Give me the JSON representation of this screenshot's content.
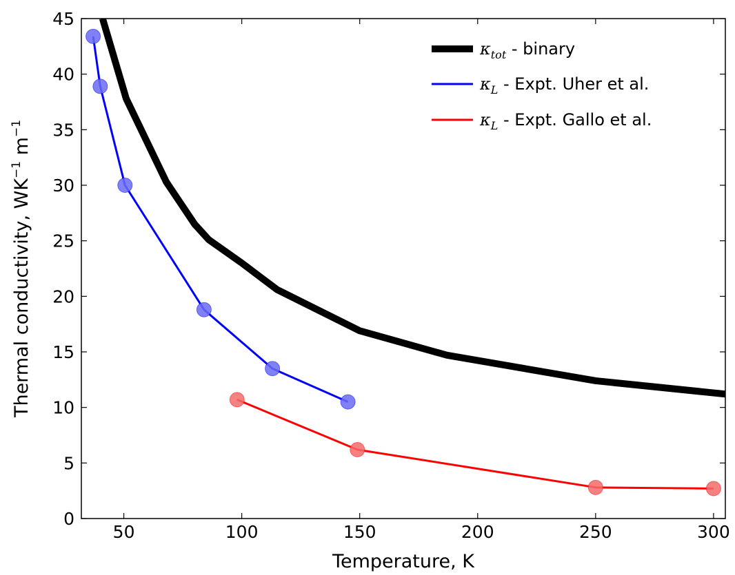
{
  "chart_data": {
    "type": "line",
    "xlabel": "Temperature, K",
    "ylabel": {
      "base": "Thermal conductivity, WK",
      "sup1": "−1",
      "mid": " m",
      "sup2": "−1"
    },
    "xlim": [
      32,
      305
    ],
    "ylim": [
      0,
      45
    ],
    "xticks": [
      50,
      100,
      150,
      200,
      250,
      300
    ],
    "yticks": [
      0,
      5,
      10,
      15,
      20,
      25,
      30,
      35,
      40,
      45
    ],
    "grid": false,
    "legend_position": "top-right",
    "series": [
      {
        "name": "binary",
        "legend_math": "κ",
        "legend_sub": "tot",
        "legend_text": " - binary",
        "color": "#000000",
        "markers": false,
        "x": [
          41,
          51,
          68,
          80,
          86,
          100,
          115,
          150,
          187,
          250,
          305
        ],
        "y": [
          45,
          37.8,
          30.3,
          26.5,
          25.1,
          23.0,
          20.6,
          16.9,
          14.7,
          12.4,
          11.2
        ]
      },
      {
        "name": "Expt. Uher et al.",
        "legend_math": "κ",
        "legend_sub": "L",
        "legend_text": " - Expt. Uher et al.",
        "color": "#0000ff",
        "marker_color": "#6b6bf5",
        "markers": true,
        "x": [
          37,
          40,
          50.5,
          84,
          113,
          145
        ],
        "y": [
          43.4,
          38.9,
          30.0,
          18.8,
          13.5,
          10.5
        ]
      },
      {
        "name": "Expt. Gallo et al.",
        "legend_math": "κ",
        "legend_sub": "L",
        "legend_text": " - Expt. Gallo et al.",
        "color": "#ff0000",
        "marker_color": "#f56b6b",
        "markers": true,
        "x": [
          98,
          149,
          250,
          300
        ],
        "y": [
          10.7,
          6.2,
          2.8,
          2.7
        ]
      }
    ]
  }
}
